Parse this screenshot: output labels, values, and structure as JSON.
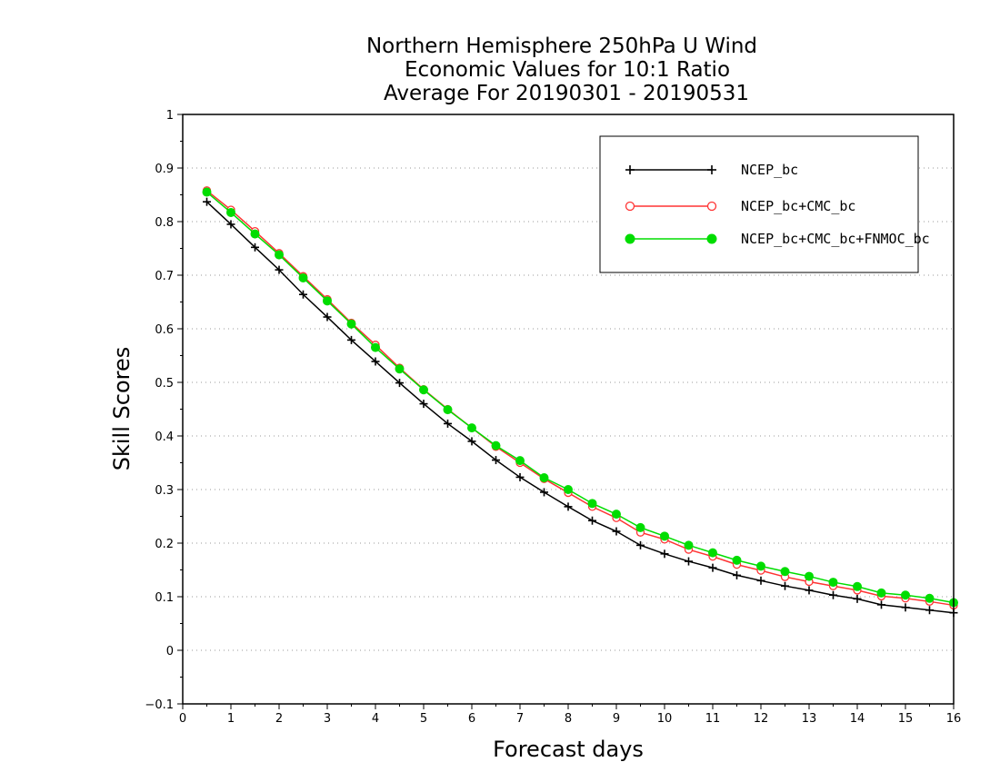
{
  "chart_data": {
    "type": "line",
    "title_lines": [
      "Northern Hemisphere 250hPa U Wind",
      "Economic Values for 10:1 Ratio",
      "Average For 20190301 - 20190531"
    ],
    "xlabel": "Forecast days",
    "ylabel": "Skill Scores",
    "xlim": [
      0,
      16
    ],
    "ylim": [
      -0.1,
      1
    ],
    "xticks": [
      "0",
      "1",
      "2",
      "3",
      "4",
      "5",
      "6",
      "7",
      "8",
      "9",
      "10",
      "11",
      "12",
      "13",
      "14",
      "15",
      "16"
    ],
    "yticks": [
      "−0.1",
      "0",
      "0.1",
      "0.2",
      "0.3",
      "0.4",
      "0.5",
      "0.6",
      "0.7",
      "0.8",
      "0.9",
      "1"
    ],
    "grid": "dotted horizontal",
    "legend_position": "top-right",
    "x": [
      0.5,
      1,
      1.5,
      2,
      2.5,
      3,
      3.5,
      4,
      4.5,
      5,
      5.5,
      6,
      6.5,
      7,
      7.5,
      8,
      8.5,
      9,
      9.5,
      10,
      10.5,
      11,
      11.5,
      12,
      12.5,
      13,
      13.5,
      14,
      14.5,
      15,
      15.5,
      16
    ],
    "series": [
      {
        "name": "NCEP_bc",
        "color": "#000000",
        "marker": "plus",
        "values": [
          0.837,
          0.795,
          0.752,
          0.71,
          0.664,
          0.622,
          0.579,
          0.539,
          0.499,
          0.46,
          0.423,
          0.39,
          0.355,
          0.323,
          0.295,
          0.268,
          0.242,
          0.222,
          0.196,
          0.18,
          0.166,
          0.154,
          0.14,
          0.13,
          0.12,
          0.112,
          0.103,
          0.096,
          0.085,
          0.08,
          0.075,
          0.07
        ]
      },
      {
        "name": "NCEP_bc+CMC_bc",
        "color": "#ff3333",
        "marker": "open-circle",
        "values": [
          0.858,
          0.822,
          0.782,
          0.741,
          0.698,
          0.655,
          0.611,
          0.57,
          0.527,
          0.487,
          0.45,
          0.415,
          0.38,
          0.35,
          0.32,
          0.294,
          0.268,
          0.247,
          0.22,
          0.207,
          0.188,
          0.175,
          0.16,
          0.149,
          0.137,
          0.128,
          0.12,
          0.112,
          0.101,
          0.097,
          0.091,
          0.084
        ]
      },
      {
        "name": "NCEP_bc+CMC_bc+FNMOC_bc",
        "color": "#00dd00",
        "marker": "filled-circle",
        "values": [
          0.855,
          0.817,
          0.777,
          0.738,
          0.695,
          0.652,
          0.609,
          0.565,
          0.525,
          0.486,
          0.449,
          0.415,
          0.382,
          0.354,
          0.322,
          0.3,
          0.274,
          0.254,
          0.229,
          0.213,
          0.196,
          0.182,
          0.168,
          0.157,
          0.147,
          0.138,
          0.127,
          0.119,
          0.107,
          0.103,
          0.097,
          0.089
        ]
      }
    ]
  }
}
